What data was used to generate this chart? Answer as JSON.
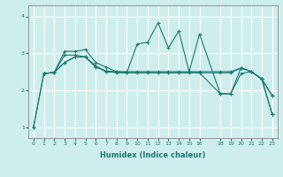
{
  "bg_color": "#ceeeed",
  "grid_color": "#ffffff",
  "line_color": "#1a7a6e",
  "xlabel": "Humidex (Indice chaleur)",
  "xlim": [
    -0.5,
    23.5
  ],
  "ylim": [
    0.7,
    4.3
  ],
  "yticks": [
    1,
    2,
    3,
    4
  ],
  "xticks": [
    0,
    1,
    2,
    3,
    4,
    5,
    6,
    7,
    8,
    9,
    10,
    11,
    12,
    13,
    14,
    15,
    16,
    18,
    19,
    20,
    21,
    22,
    23
  ],
  "series": [
    {
      "x": [
        0,
        1,
        2,
        3,
        4,
        5,
        6,
        7,
        8,
        9,
        10,
        11,
        12,
        13,
        14,
        15,
        16,
        18,
        19,
        20,
        21,
        22,
        23
      ],
      "y": [
        1.0,
        2.45,
        2.48,
        3.05,
        3.05,
        3.1,
        2.75,
        2.62,
        2.5,
        2.48,
        3.25,
        3.3,
        3.82,
        3.15,
        3.6,
        2.5,
        3.52,
        1.9,
        1.9,
        2.6,
        2.5,
        2.3,
        1.35
      ]
    },
    {
      "x": [
        0,
        1,
        2,
        3,
        4,
        5,
        6,
        7,
        8,
        9,
        10,
        11,
        12,
        13,
        14,
        15,
        16,
        18,
        19,
        20,
        21,
        22,
        23
      ],
      "y": [
        1.0,
        2.45,
        2.48,
        2.75,
        2.9,
        2.9,
        2.65,
        2.5,
        2.48,
        2.47,
        2.47,
        2.47,
        2.47,
        2.47,
        2.47,
        2.47,
        2.47,
        1.9,
        1.9,
        2.45,
        2.5,
        2.3,
        1.35
      ]
    },
    {
      "x": [
        1,
        2,
        3,
        4,
        5,
        6,
        7,
        8,
        9,
        10,
        11,
        12,
        13,
        14,
        15,
        16,
        18,
        19,
        20,
        21,
        22,
        23
      ],
      "y": [
        2.45,
        2.48,
        2.75,
        2.9,
        2.9,
        2.65,
        2.5,
        2.48,
        2.47,
        2.47,
        2.47,
        2.47,
        2.47,
        2.47,
        2.47,
        2.47,
        2.47,
        2.47,
        2.6,
        2.5,
        2.3,
        1.85
      ]
    },
    {
      "x": [
        1,
        2,
        3,
        4,
        5,
        6,
        7,
        8,
        9,
        10,
        11,
        12,
        13,
        14,
        15,
        16,
        18,
        19,
        20,
        21,
        22,
        23
      ],
      "y": [
        2.45,
        2.48,
        2.95,
        2.95,
        2.9,
        2.62,
        2.52,
        2.5,
        2.5,
        2.5,
        2.5,
        2.5,
        2.5,
        2.5,
        2.5,
        2.5,
        2.5,
        2.5,
        2.6,
        2.5,
        2.3,
        1.85
      ]
    }
  ]
}
